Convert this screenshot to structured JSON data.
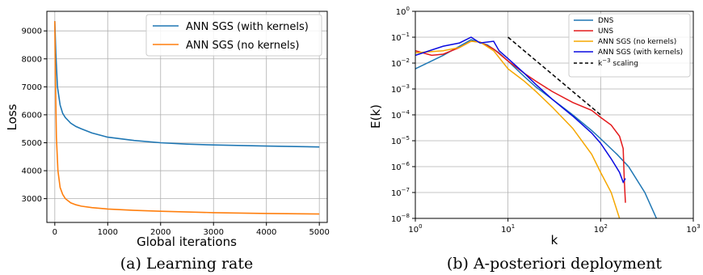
{
  "chart_data": [
    {
      "type": "line",
      "xlabel": "Global iterations",
      "ylabel": "Loss",
      "xlim": [
        -150,
        5150
      ],
      "ylim": [
        2150,
        9700
      ],
      "xticks": [
        0,
        1000,
        2000,
        3000,
        4000,
        5000
      ],
      "yticks": [
        3000,
        4000,
        5000,
        6000,
        7000,
        8000,
        9000
      ],
      "grid": true,
      "legend": "top-right",
      "caption": "(a) Learning rate",
      "series": [
        {
          "name": "ANN SGS (with kernels)",
          "color": "#1f77b4",
          "x": [
            0,
            20,
            50,
            100,
            150,
            200,
            300,
            400,
            500,
            700,
            1000,
            1500,
            2000,
            2500,
            3000,
            4000,
            5000
          ],
          "y": [
            9350,
            8200,
            7000,
            6350,
            6050,
            5900,
            5700,
            5580,
            5500,
            5350,
            5200,
            5080,
            5000,
            4950,
            4920,
            4880,
            4850
          ]
        },
        {
          "name": "ANN SGS (no kernels)",
          "color": "#ff7f0e",
          "x": [
            0,
            10,
            30,
            60,
            100,
            150,
            200,
            300,
            400,
            500,
            700,
            1000,
            1500,
            2000,
            3000,
            4000,
            5000
          ],
          "y": [
            9350,
            7500,
            5200,
            4000,
            3400,
            3150,
            3000,
            2850,
            2780,
            2730,
            2680,
            2630,
            2580,
            2550,
            2500,
            2470,
            2450
          ]
        }
      ]
    },
    {
      "type": "line",
      "xscale": "log",
      "yscale": "log",
      "xlabel": "k",
      "ylabel": "E(k)",
      "xlim": [
        1,
        1000
      ],
      "ylim": [
        1e-08,
        1
      ],
      "xticks": [
        1,
        10,
        100,
        1000
      ],
      "yticks": [
        1e-08,
        1e-07,
        1e-06,
        1e-05,
        0.0001,
        0.001,
        0.01,
        0.1,
        1
      ],
      "grid": true,
      "legend": "top-right",
      "caption": "(b) A-posteriori deployment",
      "series": [
        {
          "name": "DNS",
          "color": "#1f77b4",
          "x": [
            1,
            2,
            3,
            4,
            6,
            8,
            10,
            15,
            20,
            30,
            50,
            80,
            100,
            150,
            200,
            300,
            400
          ],
          "y": [
            0.006,
            0.02,
            0.045,
            0.08,
            0.05,
            0.025,
            0.012,
            0.003,
            0.0012,
            0.0004,
            0.0001,
            2.5e-05,
            1.2e-05,
            3e-06,
            1e-06,
            1e-07,
            1e-08
          ]
        },
        {
          "name": "UNS",
          "color": "#e41a1c",
          "x": [
            1,
            1.5,
            2,
            3,
            4,
            5,
            7,
            10,
            15,
            20,
            30,
            50,
            80,
            100,
            130,
            160,
            175,
            180,
            185
          ],
          "y": [
            0.03,
            0.02,
            0.022,
            0.04,
            0.07,
            0.065,
            0.035,
            0.012,
            0.004,
            0.002,
            0.0008,
            0.0003,
            0.00015,
            8e-05,
            4e-05,
            1.5e-05,
            5e-06,
            3e-07,
            4e-08
          ]
        },
        {
          "name": "ANN SGS (no kernels)",
          "color": "#f5a700",
          "x": [
            1,
            2,
            3,
            4,
            5,
            7,
            10,
            15,
            20,
            30,
            50,
            80,
            100,
            130,
            160
          ],
          "y": [
            0.025,
            0.03,
            0.04,
            0.07,
            0.065,
            0.03,
            0.006,
            0.002,
            0.0008,
            0.0002,
            3e-05,
            3e-06,
            6e-07,
            1e-07,
            1e-08
          ]
        },
        {
          "name": "ANN SGS (with kernels)",
          "color": "#0a0ae0",
          "x": [
            1,
            2,
            3,
            4,
            5,
            7,
            8,
            10,
            15,
            20,
            30,
            50,
            80,
            100,
            130,
            160,
            175,
            185
          ],
          "y": [
            0.02,
            0.045,
            0.06,
            0.1,
            0.06,
            0.07,
            0.03,
            0.015,
            0.004,
            0.0015,
            0.0004,
            9e-05,
            2e-05,
            8e-06,
            2e-06,
            6e-07,
            2.5e-07,
            3.5e-07
          ]
        },
        {
          "name": "k^{-3} scaling",
          "color": "#000000",
          "dashed": true,
          "x": [
            10,
            100
          ],
          "y": [
            0.1,
            0.0001
          ]
        }
      ]
    }
  ]
}
